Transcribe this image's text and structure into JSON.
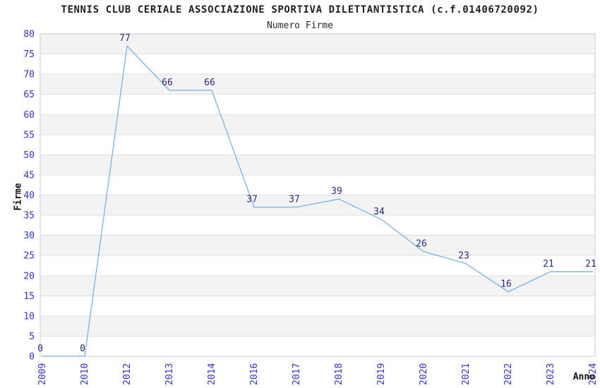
{
  "chart_data": {
    "type": "line",
    "title": "TENNIS CLUB CERIALE ASSOCIAZIONE SPORTIVA DILETTANTISTICA (c.f.01406720092)",
    "subtitle": "Numero Firme",
    "xlabel": "Anno",
    "ylabel": "Firme",
    "categories": [
      "2009",
      "2010",
      "2012",
      "2013",
      "2014",
      "2016",
      "2017",
      "2018",
      "2019",
      "2020",
      "2021",
      "2022",
      "2023",
      "2024"
    ],
    "values": [
      0,
      0,
      77,
      66,
      66,
      37,
      37,
      39,
      34,
      26,
      23,
      16,
      21,
      21
    ],
    "ylim": [
      0,
      80
    ],
    "ytick_step": 5,
    "yticks": [
      0,
      5,
      10,
      15,
      20,
      25,
      30,
      35,
      40,
      45,
      50,
      55,
      60,
      65,
      70,
      75,
      80
    ],
    "grid": "horizontal gridlines every 5 units with alternating light-gray bands, no vertical gridlines",
    "legend": "none",
    "data_labels": "shown above each point",
    "colors": {
      "line": "#7ab1e3",
      "data_label": "#2b2b77",
      "tick_label": "#3333cc",
      "band_fill": "#f3f3f3",
      "grid_line": "#e0e0e0",
      "plot_border": "#c9c9c9"
    }
  }
}
